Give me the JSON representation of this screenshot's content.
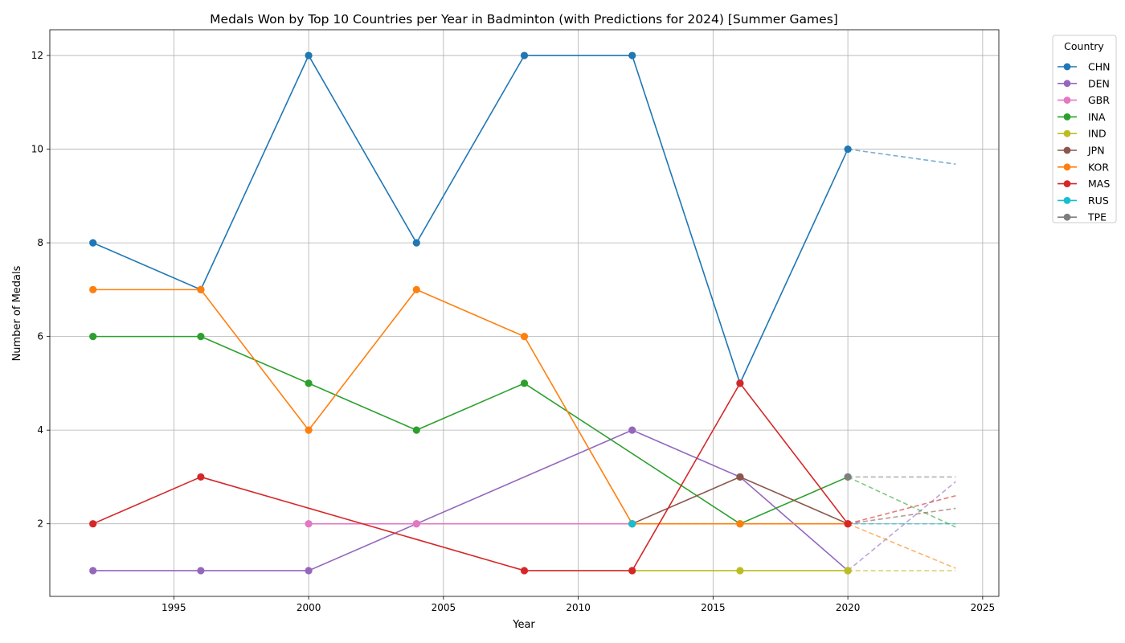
{
  "chart_data": {
    "type": "line",
    "title": "Medals Won by Top 10 Countries per Year in Badminton (with Predictions for 2024) [Summer Games]",
    "xlabel": "Year",
    "ylabel": "Number of Medals",
    "xlim": [
      1990.4,
      2025.6
    ],
    "ylim": [
      0.45,
      12.55
    ],
    "xticks": [
      1995,
      2000,
      2005,
      2010,
      2015,
      2020,
      2025
    ],
    "yticks": [
      2,
      4,
      6,
      8,
      10,
      12
    ],
    "grid": true,
    "legend": {
      "title": "Country",
      "placement": "outside-top-right"
    },
    "series": [
      {
        "name": "CHN",
        "color": "#1f77b4",
        "x": [
          1992,
          1996,
          2000,
          2004,
          2008,
          2012,
          2016,
          2020
        ],
        "y": [
          8,
          7,
          12,
          8,
          12,
          12,
          5,
          10
        ],
        "prediction": {
          "x": [
            2020,
            2024
          ],
          "y": [
            10,
            9.68
          ]
        }
      },
      {
        "name": "DEN",
        "color": "#9467bd",
        "x": [
          1992,
          1996,
          2000,
          2004,
          2012,
          2016,
          2020
        ],
        "y": [
          1,
          1,
          1,
          2,
          4,
          3,
          1
        ],
        "prediction": {
          "x": [
            2020,
            2024
          ],
          "y": [
            1,
            2.9
          ]
        }
      },
      {
        "name": "GBR",
        "color": "#e377c2",
        "x": [
          2000,
          2004,
          2012
        ],
        "y": [
          2,
          2,
          2
        ],
        "prediction": null
      },
      {
        "name": "INA",
        "color": "#2ca02c",
        "x": [
          1992,
          1996,
          2000,
          2004,
          2008,
          2016,
          2020
        ],
        "y": [
          6,
          6,
          5,
          4,
          5,
          2,
          3
        ],
        "prediction": {
          "x": [
            2020,
            2024
          ],
          "y": [
            3,
            1.93
          ]
        }
      },
      {
        "name": "IND",
        "color": "#bcbd22",
        "x": [
          2012,
          2016,
          2020
        ],
        "y": [
          1,
          1,
          1
        ],
        "prediction": {
          "x": [
            2020,
            2024
          ],
          "y": [
            1,
            1
          ]
        }
      },
      {
        "name": "JPN",
        "color": "#8c564b",
        "x": [
          2012,
          2016,
          2020
        ],
        "y": [
          2,
          3,
          2
        ],
        "prediction": {
          "x": [
            2020,
            2024
          ],
          "y": [
            2,
            2.33
          ]
        }
      },
      {
        "name": "KOR",
        "color": "#ff7f0e",
        "x": [
          1992,
          1996,
          2000,
          2004,
          2008,
          2012,
          2016,
          2020
        ],
        "y": [
          7,
          7,
          4,
          7,
          6,
          2,
          2,
          2
        ],
        "prediction": {
          "x": [
            2020,
            2024
          ],
          "y": [
            2,
            1.05
          ]
        }
      },
      {
        "name": "MAS",
        "color": "#d62728",
        "x": [
          1992,
          1996,
          2008,
          2012,
          2016,
          2020
        ],
        "y": [
          2,
          3,
          1,
          1,
          5,
          2
        ],
        "prediction": {
          "x": [
            2020,
            2024
          ],
          "y": [
            2,
            2.6
          ]
        }
      },
      {
        "name": "RUS",
        "color": "#17becf",
        "x": [
          2012
        ],
        "y": [
          2
        ],
        "prediction": {
          "x": [
            2012,
            2024
          ],
          "y": [
            2,
            2
          ]
        }
      },
      {
        "name": "TPE",
        "color": "#7f7f7f",
        "x": [
          2020
        ],
        "y": [
          3
        ],
        "prediction": {
          "x": [
            2020,
            2024
          ],
          "y": [
            3,
            3
          ]
        }
      }
    ]
  }
}
